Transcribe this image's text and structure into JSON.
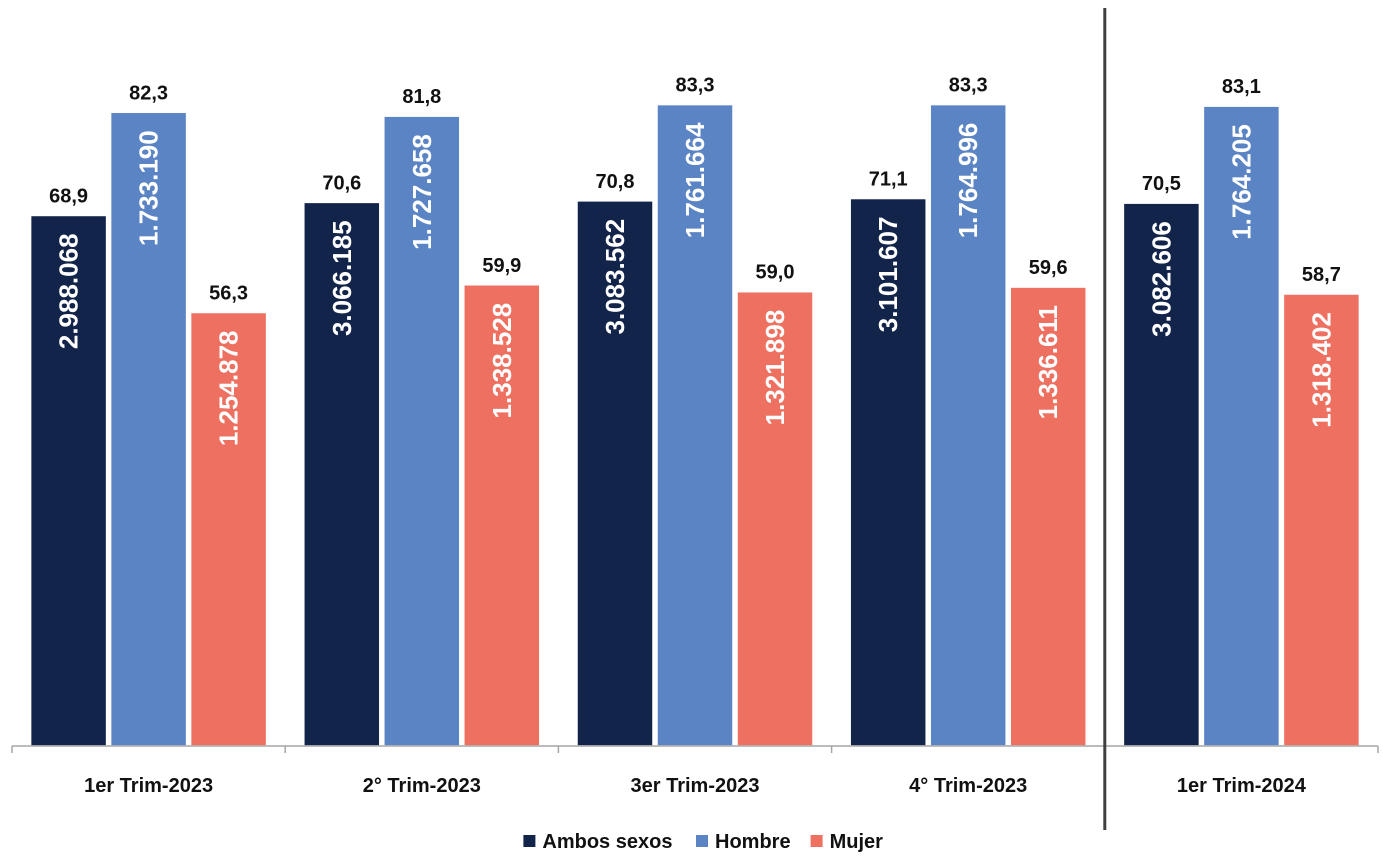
{
  "colors": {
    "ambos": "#13244a",
    "hombre": "#5b84c4",
    "mujer": "#ee7060",
    "axis": "#a6a6a6",
    "divider": "#404040"
  },
  "chart_data": {
    "type": "bar",
    "categories": [
      "1er Trim-2023",
      "2° Trim-2023",
      "3er Trim-2023",
      "4° Trim-2023",
      "1er Trim-2024"
    ],
    "series": [
      {
        "name": "Ambos sexos",
        "values": [
          68.9,
          70.6,
          70.8,
          71.1,
          70.5
        ],
        "value_labels": [
          "68,9",
          "70,6",
          "70,8",
          "71,1",
          "70,5"
        ],
        "inner_labels": [
          "2.988.068",
          "3.066.185",
          "3.083.562",
          "3.101.607",
          "3.082.606"
        ]
      },
      {
        "name": "Hombre",
        "values": [
          82.3,
          81.8,
          83.3,
          83.3,
          83.1
        ],
        "value_labels": [
          "82,3",
          "81,8",
          "83,3",
          "83,3",
          "83,1"
        ],
        "inner_labels": [
          "1.733.190",
          "1.727.658",
          "1.761.664",
          "1.764.996",
          "1.764.205"
        ]
      },
      {
        "name": "Mujer",
        "values": [
          56.3,
          59.9,
          59.0,
          59.6,
          58.7
        ],
        "value_labels": [
          "56,3",
          "59,9",
          "59,0",
          "59,6",
          "58,7"
        ],
        "inner_labels": [
          "1.254.878",
          "1.338.528",
          "1.321.898",
          "1.336.611",
          "1.318.402"
        ]
      }
    ],
    "ylim": [
      0,
      90
    ],
    "grid": false,
    "legend_position": "bottom",
    "divider_before_category": 4
  }
}
